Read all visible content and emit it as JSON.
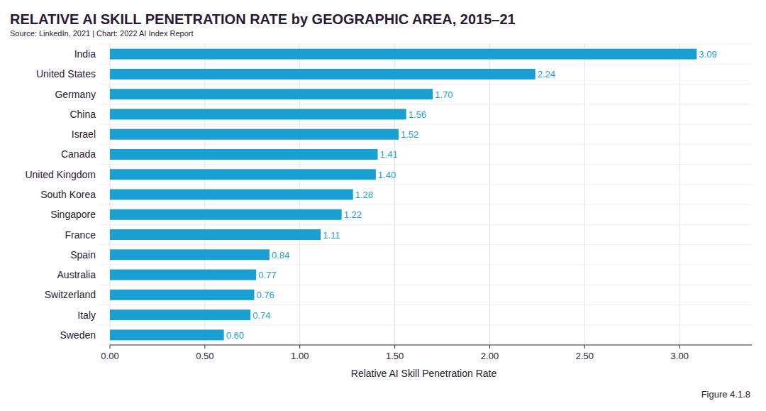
{
  "chart_data": {
    "type": "bar",
    "orientation": "horizontal",
    "title": "RELATIVE AI SKILL PENETRATION RATE by GEOGRAPHIC AREA, 2015–21",
    "subtitle": "Source: LinkedIn, 2021 | Chart: 2022 AI Index Report",
    "x_label": "Relative AI Skill Penetration Rate",
    "annotation": "Figure 4.1.8",
    "categories": [
      "India",
      "United States",
      "Germany",
      "China",
      "Israel",
      "Canada",
      "United Kingdom",
      "South Korea",
      "Singapore",
      "France",
      "Spain",
      "Australia",
      "Switzerland",
      "Italy",
      "Sweden"
    ],
    "values": [
      3.09,
      2.24,
      1.7,
      1.56,
      1.52,
      1.41,
      1.4,
      1.28,
      1.22,
      1.11,
      0.84,
      0.77,
      0.76,
      0.74,
      0.6
    ],
    "value_labels": [
      "3.09",
      "2.24",
      "1.70",
      "1.56",
      "1.52",
      "1.41",
      "1.40",
      "1.28",
      "1.22",
      "1.11",
      "0.84",
      "0.77",
      "0.76",
      "0.74",
      "0.60"
    ],
    "color": "#1a9fd2",
    "data_labels": true,
    "grid": true,
    "xlim": [
      0,
      3.38
    ],
    "xticks": [
      {
        "value": 0,
        "label": "0.00"
      },
      {
        "value": 0.5,
        "label": "0.50"
      },
      {
        "value": 1,
        "label": "1.00"
      },
      {
        "value": 1.5,
        "label": "1.50"
      },
      {
        "value": 2,
        "label": "2.00"
      },
      {
        "value": 2.5,
        "label": "2.50"
      },
      {
        "value": 3,
        "label": "3.00"
      }
    ]
  }
}
